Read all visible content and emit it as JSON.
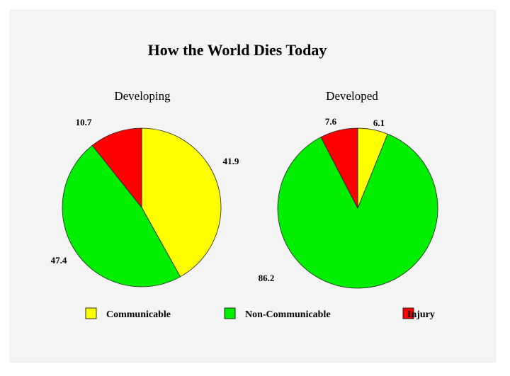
{
  "chart_data": {
    "type": "pie",
    "title": "How the World Dies Today",
    "legend": {
      "placement": "bottom",
      "entries": [
        {
          "name": "Communicable",
          "color": "#ffff00"
        },
        {
          "name": "Non-Communicable",
          "color": "#00ee00"
        },
        {
          "name": "Injury",
          "color": "#ff0000"
        }
      ]
    },
    "categories": [
      "Communicable",
      "Non-Communicable",
      "Injury"
    ],
    "pies": [
      {
        "subtitle": "Developing",
        "values": [
          41.9,
          47.4,
          10.7
        ],
        "labels": [
          "41.9",
          "47.4",
          "10.7"
        ]
      },
      {
        "subtitle": "Developed",
        "values": [
          6.1,
          86.2,
          7.6
        ],
        "labels": [
          "6.1",
          "86.2",
          "7.6"
        ]
      }
    ]
  }
}
